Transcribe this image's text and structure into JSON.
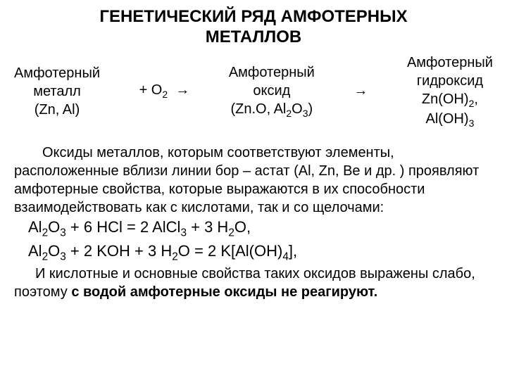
{
  "title_line1": "ГЕНЕТИЧЕСКИЙ РЯД  АМФОТЕРНЫХ",
  "title_line2": "МЕТАЛЛОВ",
  "scheme": {
    "box1_l1": "Амфотерный",
    "box1_l2": "металл",
    "box1_l3": "(Zn, Al)",
    "plus_o2": "+ O",
    "arrow1": "→",
    "box2_l1": "Амфотерный",
    "box2_l2": "оксид",
    "box2_l3a": "(Zn",
    "box2_l3b": "O, Al",
    "box2_l3c": "O",
    "box2_l3d": ")",
    "arrow2": "→",
    "box3_l1": "Амфотерный",
    "box3_l2": "гидроксид",
    "box3_l3a": "Zn(OH)",
    "box3_l3b": ",",
    "box3_l4a": "Al(OH)"
  },
  "para1": "Оксиды металлов, которым соответствуют элементы, расположенные вблизи линии бор – астат (Al, Zn, Be и др. ) проявляют амфотерные свойства, которые выражаются в их способности взаимодействовать как с кислотами, так и со щелочами:",
  "eq1_a": "Al",
  "eq1_b": "O",
  "eq1_c": "  +  6 HCl  =  2 AlCl",
  "eq1_d": "  +  3 H",
  "eq1_e": "O,",
  "eq2_a": "Al",
  "eq2_b": "O",
  "eq2_c": "  +  2 KOH  +  3 H",
  "eq2_d": "O  =  2 K[Al(OH)",
  "eq2_e": "],",
  "para2a": "И кислотные и основные свойства таких оксидов выражены слабо, поэтому ",
  "para2b": "с водой амфотерные оксиды не реагируют.",
  "colors": {
    "text": "#000000",
    "background": "#ffffff"
  },
  "fonts": {
    "title_size": 24,
    "body_size": 20,
    "weight_title": "bold"
  }
}
